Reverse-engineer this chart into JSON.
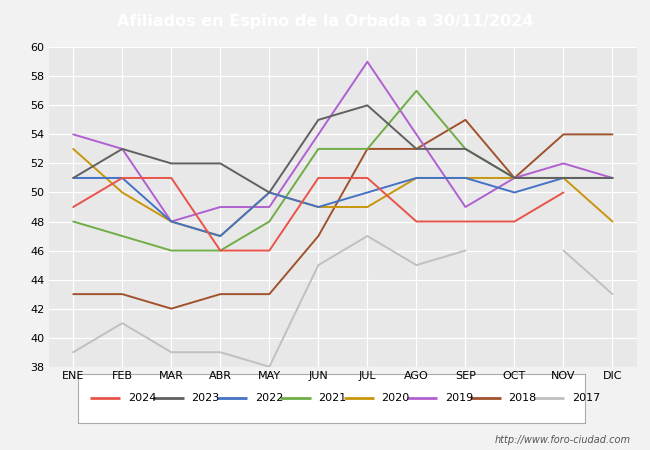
{
  "title": "Afiliados en Espino de la Orbada a 30/11/2024",
  "title_bg": "#4da6e8",
  "months": [
    "ENE",
    "FEB",
    "MAR",
    "ABR",
    "MAY",
    "JUN",
    "JUL",
    "AGO",
    "SEP",
    "OCT",
    "NOV",
    "DIC"
  ],
  "ylim": [
    38,
    60
  ],
  "yticks": [
    38,
    40,
    42,
    44,
    46,
    48,
    50,
    52,
    54,
    56,
    58,
    60
  ],
  "series": {
    "2024": {
      "color": "#e8534a",
      "data": [
        49,
        51,
        51,
        46,
        46,
        51,
        51,
        48,
        48,
        48,
        50,
        null
      ]
    },
    "2023": {
      "color": "#606060",
      "data": [
        51,
        53,
        52,
        52,
        50,
        55,
        56,
        53,
        53,
        51,
        51,
        51
      ]
    },
    "2022": {
      "color": "#4472c4",
      "data": [
        51,
        51,
        48,
        47,
        50,
        49,
        50,
        51,
        51,
        50,
        51,
        51
      ]
    },
    "2021": {
      "color": "#70ad47",
      "data": [
        48,
        47,
        46,
        46,
        48,
        53,
        53,
        57,
        53,
        51,
        51,
        51
      ]
    },
    "2020": {
      "color": "#c8960c",
      "data": [
        53,
        50,
        48,
        47,
        50,
        49,
        49,
        51,
        51,
        51,
        51,
        48
      ]
    },
    "2019": {
      "color": "#b060d0",
      "data": [
        54,
        53,
        48,
        49,
        49,
        54,
        59,
        54,
        49,
        51,
        52,
        51
      ]
    },
    "2018": {
      "color": "#a0522d",
      "data": [
        43,
        43,
        42,
        43,
        43,
        47,
        53,
        53,
        55,
        51,
        54,
        54
      ]
    },
    "2017": {
      "color": "#c0c0c0",
      "data": [
        39,
        41,
        39,
        39,
        38,
        45,
        47,
        45,
        46,
        null,
        46,
        43
      ]
    }
  },
  "legend_order": [
    "2024",
    "2023",
    "2022",
    "2021",
    "2020",
    "2019",
    "2018",
    "2017"
  ],
  "watermark": "http://www.foro-ciudad.com",
  "bg_color": "#f2f2f2",
  "plot_bg": "#e8e8e8",
  "grid_color": "#ffffff"
}
